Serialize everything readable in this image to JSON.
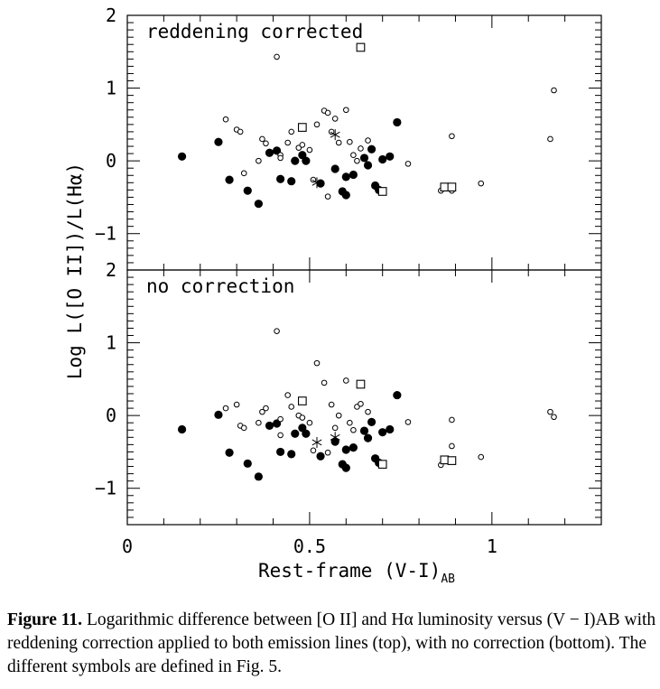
{
  "chart_data": [
    {
      "type": "scatter",
      "panel_label": "reddening corrected",
      "ylabel": "Log L([O II])/L(Hα)",
      "xlabel": "Rest-frame (V-I)AB",
      "xlim": [
        0,
        1.3
      ],
      "ylim": [
        -1.5,
        2
      ],
      "y_ticks": [
        "2",
        "1",
        "0",
        "−1"
      ],
      "series": [
        {
          "marker": "filled-circle",
          "points": [
            [
              0.15,
              0.06
            ],
            [
              0.25,
              0.26
            ],
            [
              0.28,
              -0.26
            ],
            [
              0.33,
              -0.41
            ],
            [
              0.36,
              -0.59
            ],
            [
              0.39,
              0.11
            ],
            [
              0.41,
              0.14
            ],
            [
              0.42,
              -0.25
            ],
            [
              0.45,
              -0.28
            ],
            [
              0.46,
              0.0
            ],
            [
              0.48,
              0.08
            ],
            [
              0.49,
              0.0
            ],
            [
              0.53,
              -0.31
            ],
            [
              0.57,
              -0.11
            ],
            [
              0.59,
              -0.42
            ],
            [
              0.6,
              -0.47
            ],
            [
              0.6,
              -0.22
            ],
            [
              0.62,
              -0.19
            ],
            [
              0.65,
              0.04
            ],
            [
              0.66,
              -0.06
            ],
            [
              0.67,
              0.16
            ],
            [
              0.68,
              -0.34
            ],
            [
              0.69,
              -0.4
            ],
            [
              0.7,
              0.02
            ],
            [
              0.72,
              0.06
            ],
            [
              0.74,
              0.53
            ]
          ]
        },
        {
          "marker": "open-circle",
          "points": [
            [
              0.41,
              1.43
            ],
            [
              0.27,
              0.57
            ],
            [
              0.3,
              0.43
            ],
            [
              0.31,
              0.4
            ],
            [
              0.32,
              -0.17
            ],
            [
              0.36,
              0.0
            ],
            [
              0.37,
              0.3
            ],
            [
              0.38,
              0.24
            ],
            [
              0.42,
              0.08
            ],
            [
              0.42,
              0.04
            ],
            [
              0.44,
              0.25
            ],
            [
              0.45,
              0.4
            ],
            [
              0.47,
              0.18
            ],
            [
              0.48,
              0.22
            ],
            [
              0.5,
              0.15
            ],
            [
              0.51,
              -0.26
            ],
            [
              0.52,
              0.5
            ],
            [
              0.54,
              0.69
            ],
            [
              0.55,
              0.66
            ],
            [
              0.55,
              -0.49
            ],
            [
              0.56,
              0.4
            ],
            [
              0.57,
              0.58
            ],
            [
              0.58,
              0.25
            ],
            [
              0.6,
              0.7
            ],
            [
              0.61,
              0.26
            ],
            [
              0.62,
              0.08
            ],
            [
              0.63,
              0.0
            ],
            [
              0.64,
              0.17
            ],
            [
              0.66,
              0.28
            ],
            [
              0.77,
              -0.04
            ],
            [
              0.86,
              -0.41
            ],
            [
              0.89,
              0.34
            ],
            [
              0.89,
              -0.41
            ],
            [
              0.97,
              -0.31
            ],
            [
              1.16,
              0.3
            ],
            [
              1.17,
              0.97
            ]
          ]
        },
        {
          "marker": "open-square",
          "points": [
            [
              0.64,
              1.56
            ],
            [
              0.48,
              0.46
            ],
            [
              0.7,
              -0.42
            ],
            [
              0.87,
              -0.36
            ],
            [
              0.89,
              -0.36
            ]
          ]
        },
        {
          "marker": "asterisk",
          "points": [
            [
              0.52,
              -0.3
            ],
            [
              0.57,
              0.36
            ]
          ]
        }
      ]
    },
    {
      "type": "scatter",
      "panel_label": "no correction",
      "ylabel": "Log L([O II])/L(Hα)",
      "xlabel": "Rest-frame (V-I)AB",
      "xlim": [
        0,
        1.3
      ],
      "ylim": [
        -1.5,
        2
      ],
      "y_ticks": [
        "2",
        "1",
        "0",
        "−1"
      ],
      "x_ticks": [
        "0",
        "0.5",
        "1"
      ],
      "series": [
        {
          "marker": "filled-circle",
          "points": [
            [
              0.15,
              -0.19
            ],
            [
              0.25,
              0.01
            ],
            [
              0.28,
              -0.51
            ],
            [
              0.33,
              -0.66
            ],
            [
              0.36,
              -0.84
            ],
            [
              0.39,
              -0.14
            ],
            [
              0.41,
              -0.11
            ],
            [
              0.42,
              -0.5
            ],
            [
              0.45,
              -0.53
            ],
            [
              0.46,
              -0.25
            ],
            [
              0.48,
              -0.17
            ],
            [
              0.49,
              -0.25
            ],
            [
              0.53,
              -0.56
            ],
            [
              0.57,
              -0.36
            ],
            [
              0.59,
              -0.67
            ],
            [
              0.6,
              -0.72
            ],
            [
              0.6,
              -0.47
            ],
            [
              0.62,
              -0.44
            ],
            [
              0.65,
              -0.21
            ],
            [
              0.66,
              -0.31
            ],
            [
              0.67,
              -0.09
            ],
            [
              0.68,
              -0.59
            ],
            [
              0.69,
              -0.65
            ],
            [
              0.7,
              -0.23
            ],
            [
              0.72,
              -0.19
            ],
            [
              0.74,
              0.28
            ]
          ]
        },
        {
          "marker": "open-circle",
          "points": [
            [
              0.41,
              1.16
            ],
            [
              0.27,
              0.1
            ],
            [
              0.3,
              0.15
            ],
            [
              0.31,
              -0.14
            ],
            [
              0.32,
              -0.17
            ],
            [
              0.36,
              -0.1
            ],
            [
              0.37,
              0.05
            ],
            [
              0.38,
              0.1
            ],
            [
              0.42,
              -0.05
            ],
            [
              0.42,
              -0.27
            ],
            [
              0.44,
              0.28
            ],
            [
              0.45,
              0.12
            ],
            [
              0.47,
              0.0
            ],
            [
              0.48,
              -0.03
            ],
            [
              0.5,
              -0.1
            ],
            [
              0.51,
              -0.48
            ],
            [
              0.52,
              0.72
            ],
            [
              0.54,
              0.45
            ],
            [
              0.55,
              -0.51
            ],
            [
              0.56,
              0.15
            ],
            [
              0.57,
              -0.17
            ],
            [
              0.58,
              0.0
            ],
            [
              0.6,
              0.48
            ],
            [
              0.61,
              -0.1
            ],
            [
              0.62,
              -0.2
            ],
            [
              0.63,
              0.12
            ],
            [
              0.64,
              0.16
            ],
            [
              0.66,
              0.05
            ],
            [
              0.77,
              -0.09
            ],
            [
              0.86,
              -0.68
            ],
            [
              0.89,
              -0.06
            ],
            [
              0.89,
              -0.42
            ],
            [
              0.97,
              -0.57
            ],
            [
              1.16,
              0.05
            ],
            [
              1.17,
              -0.02
            ]
          ]
        },
        {
          "marker": "open-square",
          "points": [
            [
              0.64,
              0.43
            ],
            [
              0.48,
              0.2
            ],
            [
              0.7,
              -0.67
            ],
            [
              0.87,
              -0.61
            ],
            [
              0.89,
              -0.62
            ]
          ]
        },
        {
          "marker": "asterisk",
          "points": [
            [
              0.52,
              -0.37
            ],
            [
              0.57,
              -0.3
            ]
          ]
        }
      ]
    }
  ],
  "axis_labels": {
    "ylabel": "Log L([O II])/L(Hα)",
    "xlabel_main": "Rest-frame (V-I)",
    "xlabel_sub": "AB"
  },
  "caption": {
    "label": "Figure 11.",
    "text": " Logarithmic difference between [O II] and Hα luminosity versus (V − I)AB with reddening correction applied to both emission lines (top), with no correction (bottom). The different symbols are defined in Fig. 5."
  }
}
